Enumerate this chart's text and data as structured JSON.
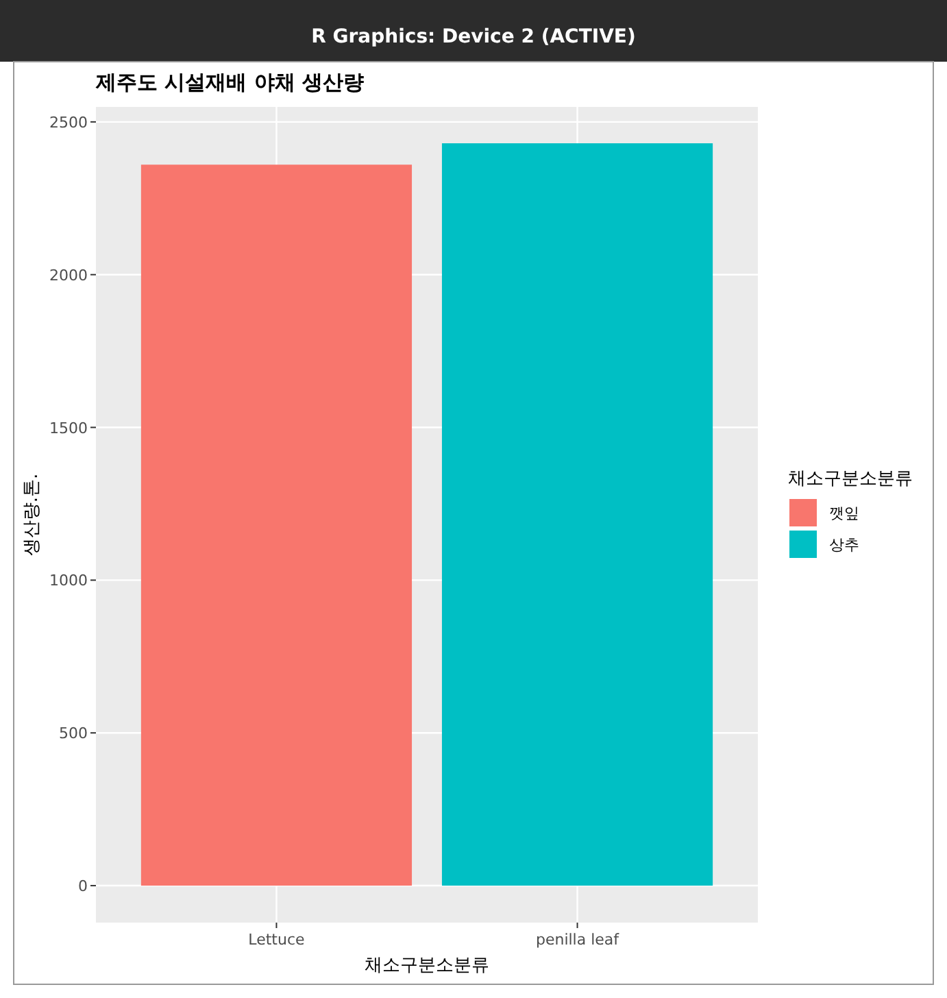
{
  "chart_data": {
    "type": "bar",
    "title": "제주도 시설재배 야채 생산량",
    "xlabel": "채소구분소분류",
    "ylabel": "생산량.톤.",
    "legend_title": "채소구분소분류",
    "annotations": [
      "R Graphics: Device 2 (ACTIVE)"
    ],
    "categories": [
      "Lettuce",
      "penilla leaf"
    ],
    "series": [
      {
        "name": "깻잎",
        "color": "#f8766d",
        "values": [
          2360,
          null
        ]
      },
      {
        "name": "상추",
        "color": "#00bfc4",
        "values": [
          null,
          2430
        ]
      }
    ],
    "ylim": [
      -121,
      2549
    ],
    "yticks": [
      0,
      500,
      1000,
      1500,
      2000,
      2500
    ],
    "grid": true,
    "legend": "right"
  }
}
